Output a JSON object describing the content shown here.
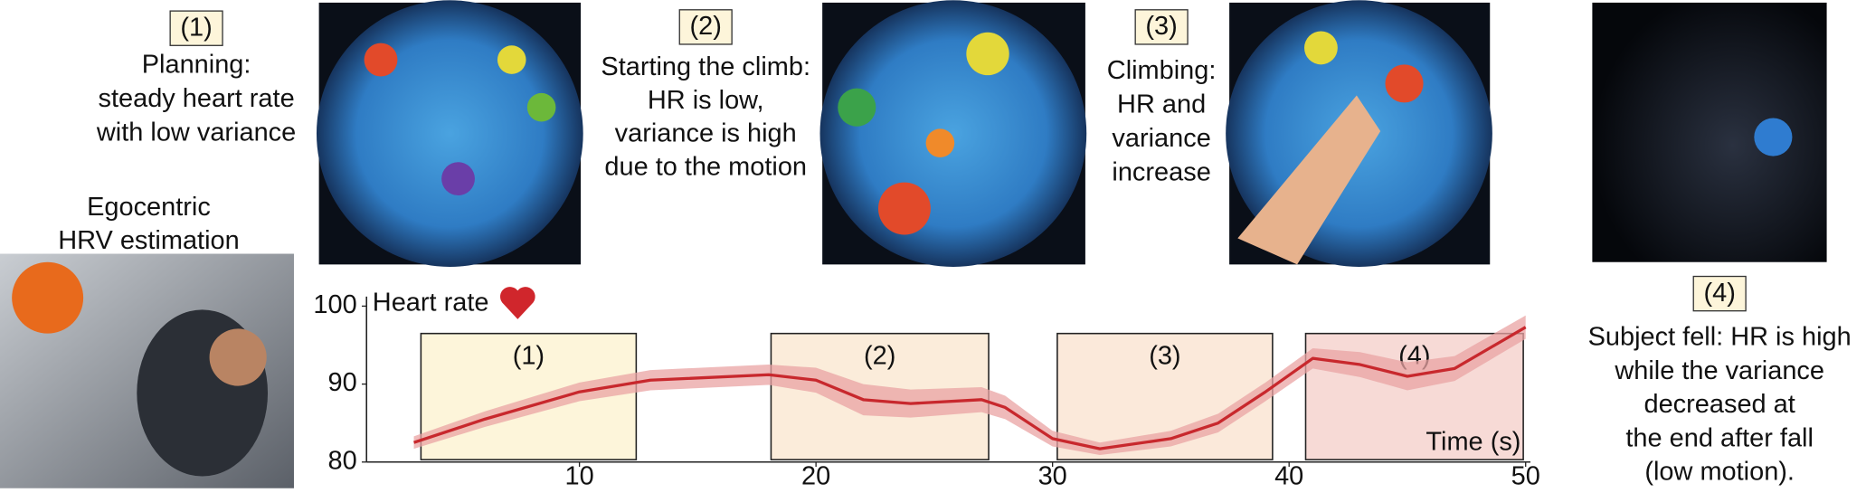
{
  "intro": [
    "Egocentric",
    "HRV estimation"
  ],
  "panels": [
    {
      "label": "(1)",
      "lines": [
        "Planning:",
        "steady heart rate",
        "with low variance"
      ]
    },
    {
      "label": "(2)",
      "lines": [
        "Starting the climb:",
        "HR is low,",
        "variance is high",
        "due to the motion"
      ]
    },
    {
      "label": "(3)",
      "lines": [
        "Climbing:",
        "HR and",
        "variance",
        "increase"
      ]
    },
    {
      "label": "(4)",
      "lines": [
        "Subject fell: HR is high",
        "while the variance",
        "decreased at",
        "the end after fall",
        "(low motion)."
      ]
    }
  ],
  "chart_data": {
    "type": "line",
    "ylabel": "Heart rate",
    "xlabel": "Time (s)",
    "xlim": [
      1,
      50
    ],
    "ylim": [
      80,
      100
    ],
    "xticks": [
      10,
      20,
      30,
      40,
      50
    ],
    "yticks": [
      80,
      90,
      100
    ],
    "x": [
      3,
      6,
      10,
      13,
      18,
      20,
      22,
      24,
      27,
      28,
      30,
      32,
      35,
      37,
      39,
      41,
      43,
      45,
      47,
      50
    ],
    "series": [
      {
        "color": "#c8282d",
        "band_color": "#e9a3a3",
        "values": [
          82.5,
          85.5,
          89,
          90.5,
          91.2,
          90.5,
          88,
          87.5,
          88,
          87,
          83,
          81.7,
          83,
          85,
          89,
          93.3,
          92.5,
          91,
          92,
          97.3
        ],
        "error": [
          0.8,
          1,
          1.2,
          1.3,
          1.3,
          1.6,
          2,
          1.8,
          1.6,
          1.5,
          1,
          0.8,
          1,
          1.2,
          1.2,
          1.3,
          1.6,
          1.8,
          1.6,
          1.5
        ]
      }
    ],
    "regions": [
      {
        "label": "(1)",
        "start": 3.3,
        "end": 12.4,
        "color": "#fdf5da"
      },
      {
        "label": "(2)",
        "start": 18.1,
        "end": 27.3,
        "color": "#fbecda"
      },
      {
        "label": "(3)",
        "start": 30.2,
        "end": 39.3,
        "color": "#fbe9da"
      },
      {
        "label": "(4)",
        "start": 40.7,
        "end": 49.9,
        "color": "#f7dad6"
      }
    ]
  }
}
